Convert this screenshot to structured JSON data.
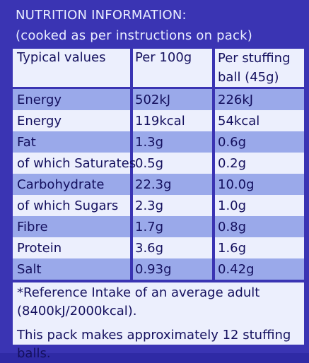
{
  "header": {
    "title": "NUTRITION INFORMATION:",
    "subtitle": "(cooked as per instructions on pack)"
  },
  "table": {
    "columns": [
      "Typical values",
      "Per 100g",
      "Per stuffing ball (45g)"
    ],
    "rows": [
      {
        "nutrient": "Energy",
        "per100g": "502kJ",
        "perBall": "226kJ"
      },
      {
        "nutrient": "Energy",
        "per100g": "119kcal",
        "perBall": "54kcal"
      },
      {
        "nutrient": "Fat",
        "per100g": "1.3g",
        "perBall": "0.6g"
      },
      {
        "nutrient": "of which Saturates",
        "per100g": "0.5g",
        "perBall": "0.2g"
      },
      {
        "nutrient": "Carbohydrate",
        "per100g": "22.3g",
        "perBall": "10.0g"
      },
      {
        "nutrient": "of which Sugars",
        "per100g": "2.3g",
        "perBall": "1.0g"
      },
      {
        "nutrient": "Fibre",
        "per100g": "1.7g",
        "perBall": "0.8g"
      },
      {
        "nutrient": "Protein",
        "per100g": "3.6g",
        "perBall": "1.6g"
      },
      {
        "nutrient": "Salt",
        "per100g": "0.93g",
        "perBall": "0.42g"
      }
    ]
  },
  "footnotes": {
    "reference_intake": "*Reference Intake of an average adult (8400kJ/2000kcal).",
    "pack_note": "This pack makes approximately 12 stuffing balls."
  }
}
